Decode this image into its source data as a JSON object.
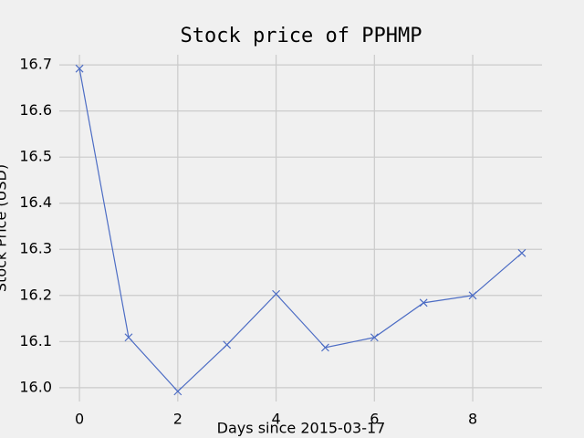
{
  "chart_data": {
    "type": "line",
    "title": "Stock price of PPHMP",
    "x_label": "Days since 2015-03-17",
    "y_label": "Stock Price (USD)",
    "x": [
      0,
      1,
      2,
      3,
      4,
      5,
      6,
      7,
      8,
      9
    ],
    "series": [
      {
        "name": "PPHMP",
        "color": "#4c6cc4",
        "marker": "x",
        "values": [
          16.692,
          16.109,
          15.992,
          16.093,
          16.203,
          16.087,
          16.109,
          16.184,
          16.2,
          16.292
        ]
      }
    ],
    "xlim": [
      -0.41,
      9.41
    ],
    "ylim": [
      15.97,
      16.722
    ],
    "xticks": [
      0,
      2,
      4,
      6,
      8
    ],
    "yticks": [
      {
        "value": 16.0,
        "label": "16.0"
      },
      16.1,
      16.2,
      16.3,
      16.4,
      16.5,
      16.6,
      16.7
    ],
    "grid": true
  }
}
